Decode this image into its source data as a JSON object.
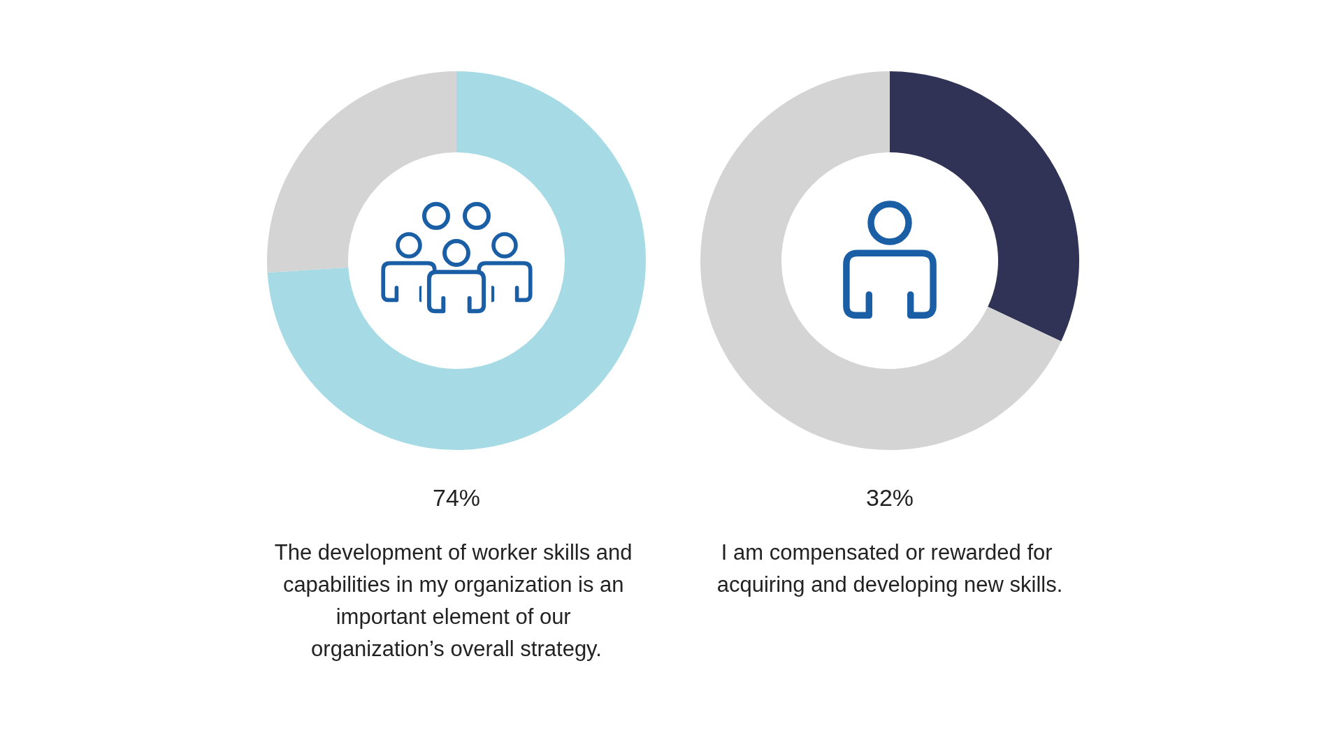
{
  "chart_data": [
    {
      "type": "donut",
      "categories": [
        null,
        null
      ],
      "values": [
        74,
        26
      ],
      "colors": [
        "#a6dbe6",
        "#d4d4d4"
      ],
      "title": "74%",
      "subtitle": "The development of worker skills and capabilities in my organization is an important element of our organization’s overall strategy."
    },
    {
      "type": "donut",
      "categories": [
        null,
        null
      ],
      "values": [
        32,
        68
      ],
      "colors": [
        "#313356",
        "#d4d4d4"
      ],
      "title": "32%",
      "subtitle": "I am compensated or rewarded for acquiring and developing new skills."
    }
  ]
}
